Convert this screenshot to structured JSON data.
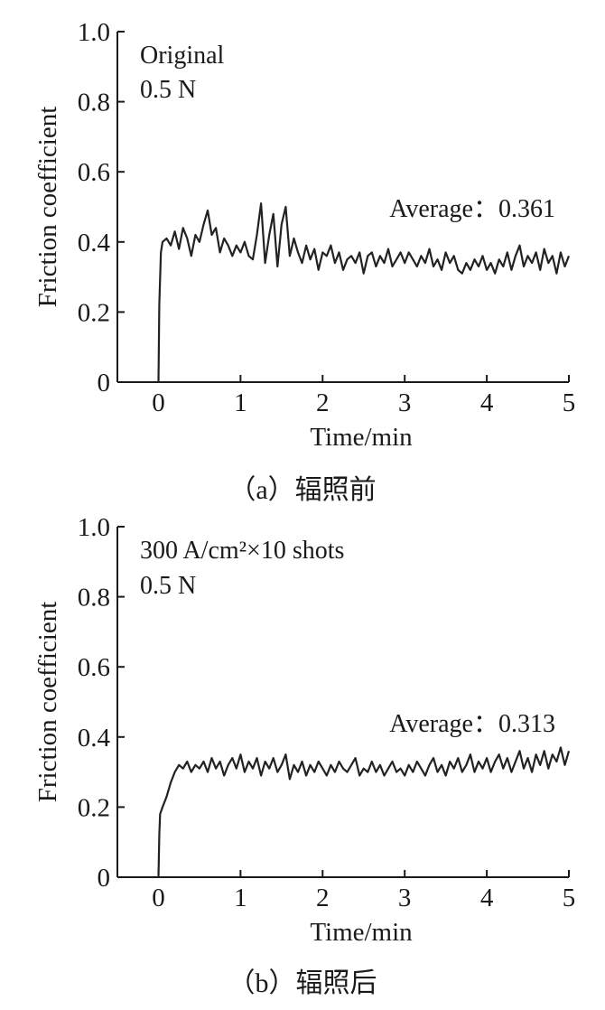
{
  "chart_data": [
    {
      "type": "line",
      "panel_caption": "（a）辐照前",
      "xlabel": "Time/min",
      "ylabel": "Friction coefficient",
      "xlim": [
        -0.5,
        5
      ],
      "ylim": [
        0,
        1.0
      ],
      "xticks": [
        "0",
        "1",
        "2",
        "3",
        "4",
        "5"
      ],
      "yticks": [
        "0",
        "0.2",
        "0.4",
        "0.6",
        "0.8",
        "1.0"
      ],
      "annotation_lines": [
        "Original",
        "0.5 N"
      ],
      "average_label": "Average：0.361",
      "series": [
        {
          "average": 0.361,
          "x": [
            0,
            0.01,
            0.03,
            0.05,
            0.1,
            0.15,
            0.2,
            0.25,
            0.3,
            0.35,
            0.4,
            0.45,
            0.5,
            0.55,
            0.6,
            0.65,
            0.7,
            0.75,
            0.8,
            0.85,
            0.9,
            0.95,
            1.0,
            1.05,
            1.1,
            1.15,
            1.2,
            1.25,
            1.3,
            1.35,
            1.4,
            1.45,
            1.5,
            1.55,
            1.6,
            1.65,
            1.7,
            1.75,
            1.8,
            1.85,
            1.9,
            1.95,
            2.0,
            2.05,
            2.1,
            2.15,
            2.2,
            2.25,
            2.3,
            2.35,
            2.4,
            2.45,
            2.5,
            2.55,
            2.6,
            2.65,
            2.7,
            2.75,
            2.8,
            2.85,
            2.9,
            2.95,
            3.0,
            3.05,
            3.1,
            3.15,
            3.2,
            3.25,
            3.3,
            3.35,
            3.4,
            3.45,
            3.5,
            3.55,
            3.6,
            3.65,
            3.7,
            3.75,
            3.8,
            3.85,
            3.9,
            3.95,
            4.0,
            4.05,
            4.1,
            4.15,
            4.2,
            4.25,
            4.3,
            4.35,
            4.4,
            4.45,
            4.5,
            4.55,
            4.6,
            4.65,
            4.7,
            4.75,
            4.8,
            4.85,
            4.9,
            4.95,
            5.0
          ],
          "y": [
            0.0,
            0.22,
            0.37,
            0.4,
            0.41,
            0.39,
            0.43,
            0.38,
            0.44,
            0.41,
            0.36,
            0.42,
            0.4,
            0.45,
            0.49,
            0.42,
            0.44,
            0.37,
            0.41,
            0.39,
            0.36,
            0.39,
            0.37,
            0.4,
            0.36,
            0.35,
            0.42,
            0.51,
            0.34,
            0.42,
            0.48,
            0.33,
            0.45,
            0.5,
            0.36,
            0.41,
            0.37,
            0.34,
            0.39,
            0.35,
            0.38,
            0.32,
            0.37,
            0.36,
            0.39,
            0.34,
            0.37,
            0.32,
            0.35,
            0.36,
            0.34,
            0.37,
            0.31,
            0.36,
            0.37,
            0.33,
            0.36,
            0.34,
            0.38,
            0.33,
            0.35,
            0.37,
            0.34,
            0.37,
            0.35,
            0.33,
            0.36,
            0.34,
            0.38,
            0.33,
            0.35,
            0.32,
            0.37,
            0.34,
            0.36,
            0.32,
            0.31,
            0.34,
            0.32,
            0.35,
            0.33,
            0.36,
            0.32,
            0.34,
            0.31,
            0.35,
            0.33,
            0.37,
            0.32,
            0.36,
            0.39,
            0.33,
            0.36,
            0.34,
            0.37,
            0.32,
            0.38,
            0.34,
            0.36,
            0.31,
            0.37,
            0.33,
            0.36
          ]
        }
      ]
    },
    {
      "type": "line",
      "panel_caption": "（b）辐照后",
      "xlabel": "Time/min",
      "ylabel": "Friction coefficient",
      "xlim": [
        -0.5,
        5
      ],
      "ylim": [
        0,
        1.0
      ],
      "xticks": [
        "0",
        "1",
        "2",
        "3",
        "4",
        "5"
      ],
      "yticks": [
        "0",
        "0.2",
        "0.4",
        "0.6",
        "0.8",
        "1.0"
      ],
      "annotation_lines": [
        "300 A/cm²×10 shots",
        "0.5 N"
      ],
      "average_label": "Average：0.313",
      "series": [
        {
          "average": 0.313,
          "x": [
            0,
            0.01,
            0.02,
            0.05,
            0.1,
            0.15,
            0.2,
            0.25,
            0.3,
            0.35,
            0.4,
            0.45,
            0.5,
            0.55,
            0.6,
            0.65,
            0.7,
            0.75,
            0.8,
            0.85,
            0.9,
            0.95,
            1.0,
            1.05,
            1.1,
            1.15,
            1.2,
            1.25,
            1.3,
            1.35,
            1.4,
            1.45,
            1.5,
            1.55,
            1.6,
            1.65,
            1.7,
            1.75,
            1.8,
            1.85,
            1.9,
            1.95,
            2.0,
            2.05,
            2.1,
            2.15,
            2.2,
            2.25,
            2.3,
            2.35,
            2.4,
            2.45,
            2.5,
            2.55,
            2.6,
            2.65,
            2.7,
            2.75,
            2.8,
            2.85,
            2.9,
            2.95,
            3.0,
            3.05,
            3.1,
            3.15,
            3.2,
            3.25,
            3.3,
            3.35,
            3.4,
            3.45,
            3.5,
            3.55,
            3.6,
            3.65,
            3.7,
            3.75,
            3.8,
            3.85,
            3.9,
            3.95,
            4.0,
            4.05,
            4.1,
            4.15,
            4.2,
            4.25,
            4.3,
            4.35,
            4.4,
            4.45,
            4.5,
            4.55,
            4.6,
            4.65,
            4.7,
            4.75,
            4.8,
            4.85,
            4.9,
            4.95,
            5.0
          ],
          "y": [
            0.0,
            0.12,
            0.18,
            0.2,
            0.23,
            0.27,
            0.3,
            0.32,
            0.31,
            0.33,
            0.3,
            0.32,
            0.31,
            0.33,
            0.3,
            0.34,
            0.31,
            0.33,
            0.29,
            0.32,
            0.34,
            0.31,
            0.35,
            0.3,
            0.33,
            0.31,
            0.34,
            0.29,
            0.33,
            0.31,
            0.34,
            0.3,
            0.32,
            0.35,
            0.28,
            0.32,
            0.3,
            0.33,
            0.29,
            0.32,
            0.3,
            0.33,
            0.31,
            0.29,
            0.32,
            0.3,
            0.33,
            0.31,
            0.3,
            0.32,
            0.34,
            0.29,
            0.31,
            0.3,
            0.33,
            0.3,
            0.32,
            0.29,
            0.31,
            0.33,
            0.3,
            0.31,
            0.29,
            0.32,
            0.3,
            0.33,
            0.31,
            0.29,
            0.32,
            0.34,
            0.3,
            0.32,
            0.29,
            0.33,
            0.31,
            0.34,
            0.3,
            0.32,
            0.35,
            0.3,
            0.33,
            0.31,
            0.34,
            0.3,
            0.33,
            0.35,
            0.31,
            0.34,
            0.3,
            0.33,
            0.36,
            0.31,
            0.34,
            0.3,
            0.35,
            0.32,
            0.36,
            0.31,
            0.35,
            0.33,
            0.37,
            0.32,
            0.36
          ]
        }
      ]
    }
  ]
}
